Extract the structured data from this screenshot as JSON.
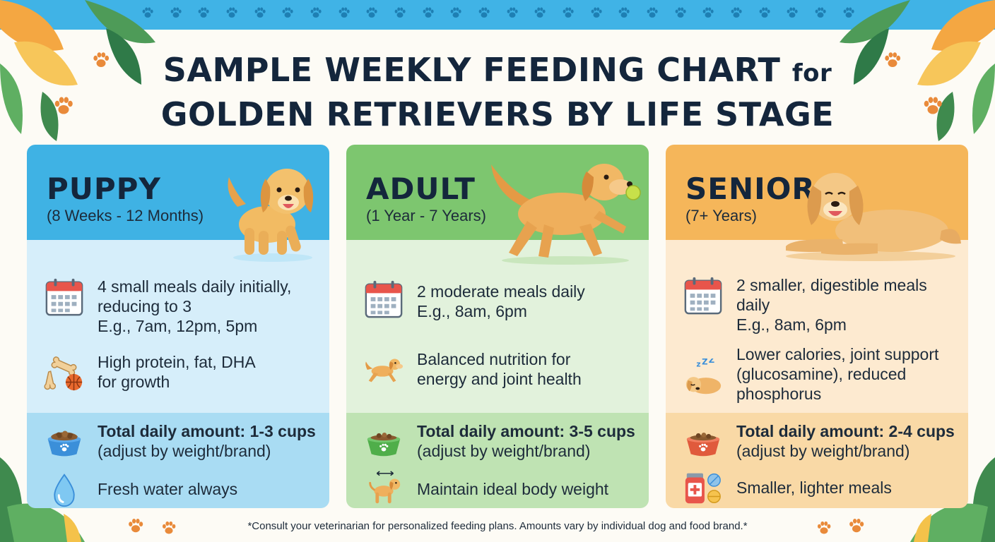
{
  "title": {
    "line1_main": "SAMPLE WEEKLY FEEDING CHART",
    "line1_small": "for",
    "line2": "GOLDEN RETRIEVERS BY LIFE STAGE"
  },
  "colors": {
    "top_band": "#40b3e6",
    "puppy_head": "#3fb2e4",
    "puppy_mid": "#d6eefa",
    "puppy_bot": "#a9dcf3",
    "adult_head": "#7dc66f",
    "adult_mid": "#e2f2dc",
    "adult_bot": "#bfe3b3",
    "senior_head": "#f5b65a",
    "senior_mid": "#fdead0",
    "senior_bot": "#f9d9a6"
  },
  "cards": {
    "puppy": {
      "name": "PUPPY",
      "range": "(8 Weeks - 12 Months)",
      "schedule": [
        "4 small meals daily initially,",
        "reducing to 3",
        "E.g., 7am, 12pm, 5pm"
      ],
      "nutrition": [
        "High protein, fat, DHA",
        "for growth"
      ],
      "amount": "Total daily amount: 1-3 cups",
      "amount_note": "(adjust by weight/brand)",
      "extra": "Fresh water always",
      "icons": [
        "calendar-icon",
        "bones-and-ball-icon",
        "food-bowl-icon",
        "water-drop-icon"
      ]
    },
    "adult": {
      "name": "ADULT",
      "range": "(1 Year - 7 Years)",
      "schedule": [
        "2 moderate meals daily",
        "E.g., 8am, 6pm"
      ],
      "nutrition": [
        "Balanced nutrition for",
        "energy and joint health"
      ],
      "amount": "Total daily amount: 3-5 cups",
      "amount_note": "(adjust by weight/brand)",
      "extra": "Maintain ideal body weight",
      "icons": [
        "calendar-icon",
        "running-dog-icon",
        "food-bowl-icon",
        "dog-weight-icon"
      ]
    },
    "senior": {
      "name": "SENIOR",
      "range": "(7+ Years)",
      "schedule": [
        "2 smaller, digestible meals",
        "daily",
        "E.g., 8am, 6pm"
      ],
      "nutrition": [
        "Lower calories, joint support",
        "(glucosamine), reduced",
        "phosphorus"
      ],
      "amount": "Total daily amount: 2-4 cups",
      "amount_note": "(adjust by weight/brand)",
      "extra": "Smaller, lighter meals",
      "icons": [
        "calendar-icon",
        "sleeping-dog-icon",
        "food-bowl-icon",
        "supplements-icon"
      ]
    }
  },
  "footnote": "*Consult your veterinarian for personalized feeding plans. Amounts vary by individual dog and food brand.*"
}
